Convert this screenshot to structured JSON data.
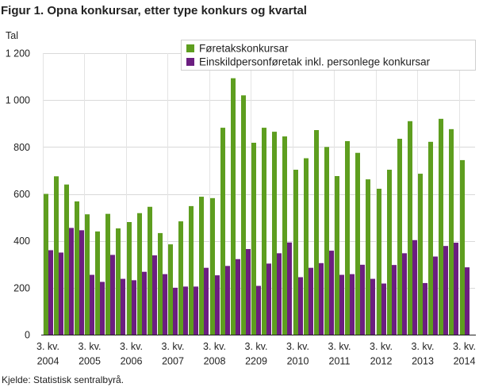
{
  "chart_data": {
    "type": "bar",
    "title": "Figur 1. Opna konkursar, etter type konkurs og kvartal",
    "xlabel": "",
    "ylabel": "Tal",
    "ylim": [
      0,
      1200
    ],
    "y_ticks": [
      {
        "value": 0,
        "label": "0"
      },
      {
        "value": 200,
        "label": "200"
      },
      {
        "value": 400,
        "label": "400"
      },
      {
        "value": 600,
        "label": "600"
      },
      {
        "value": 800,
        "label": "800"
      },
      {
        "value": 1000,
        "label": "1 000"
      },
      {
        "value": 1200,
        "label": "1 200"
      }
    ],
    "x_ticks": [
      {
        "quarter": "3. kv.",
        "year": "2004"
      },
      {
        "quarter": "3. kv.",
        "year": "2005"
      },
      {
        "quarter": "3. kv.",
        "year": "2006"
      },
      {
        "quarter": "3. kv.",
        "year": "2007"
      },
      {
        "quarter": "3. kv.",
        "year": "2008"
      },
      {
        "quarter": "3. kv.",
        "year": "2209"
      },
      {
        "quarter": "3. kv.",
        "year": "2010"
      },
      {
        "quarter": "3. kv.",
        "year": "2011"
      },
      {
        "quarter": "3. kv.",
        "year": "2012"
      },
      {
        "quarter": "3. kv.",
        "year": "2013"
      },
      {
        "quarter": "3. kv.",
        "year": "2014"
      }
    ],
    "series": [
      {
        "name": "Føretakskonkursar",
        "color": "#5e9e1f",
        "values": [
          600,
          675,
          640,
          568,
          513,
          440,
          515,
          453,
          480,
          518,
          545,
          433,
          385,
          483,
          548,
          588,
          582,
          882,
          1093,
          1020,
          818,
          882,
          865,
          845,
          703,
          752,
          872,
          800,
          676,
          825,
          775,
          662,
          622,
          703,
          835,
          910,
          686,
          822,
          920,
          876,
          744
        ]
      },
      {
        "name": "Einskildpersonføretak inkl. personlege konkursar",
        "color": "#6b1e80",
        "values": [
          360,
          350,
          455,
          445,
          255,
          225,
          340,
          238,
          232,
          268,
          338,
          258,
          200,
          205,
          205,
          285,
          253,
          293,
          322,
          365,
          208,
          303,
          347,
          393,
          245,
          285,
          305,
          358,
          255,
          258,
          298,
          238,
          218,
          297,
          347,
          403,
          220,
          333,
          378,
          392,
          287
        ]
      }
    ],
    "legend": "top-right",
    "grid": {
      "horizontal": true,
      "vertical": true
    }
  },
  "footer": {
    "source": "Kjelde: Statistisk sentralbyrå."
  }
}
